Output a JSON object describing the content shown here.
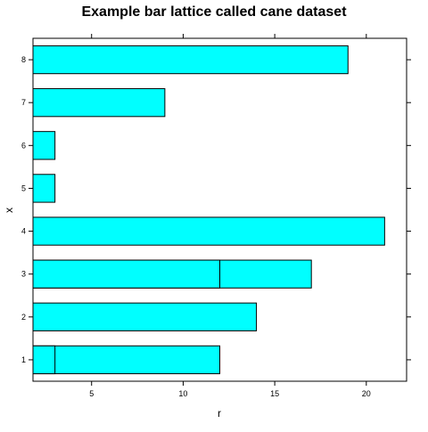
{
  "chart_data": {
    "type": "bar",
    "orientation": "horizontal",
    "title": "Example bar lattice called cane dataset",
    "xlabel": "r",
    "ylabel": "x",
    "categories": [
      "1",
      "2",
      "3",
      "4",
      "5",
      "6",
      "7",
      "8"
    ],
    "series": [
      {
        "values": [
          3,
          14,
          12,
          21,
          3,
          3,
          9,
          19
        ]
      },
      {
        "values": [
          12,
          0,
          17,
          0,
          0,
          0,
          0,
          0
        ]
      }
    ],
    "xlim": [
      1.8,
      22.2
    ],
    "x_ticks": [
      5,
      10,
      15,
      20
    ],
    "x_tick_labels": [
      "5",
      "10",
      "15",
      "20"
    ],
    "grid": false,
    "bar_fill": "#00ffff",
    "bar_stroke": "#000000"
  }
}
